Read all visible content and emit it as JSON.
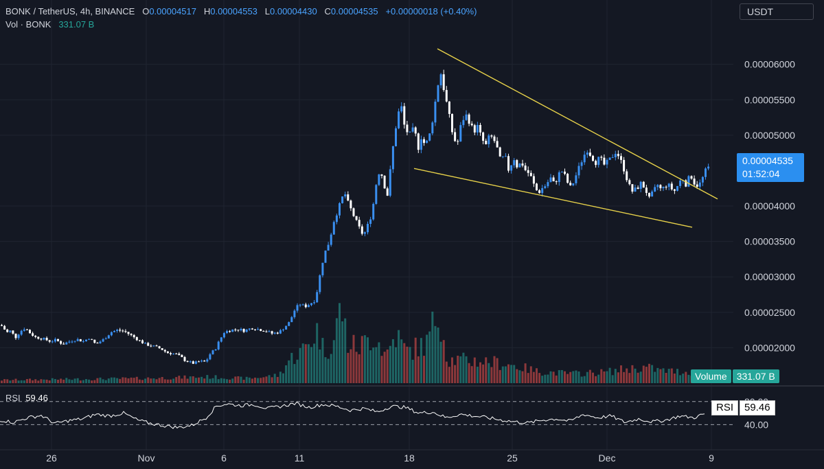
{
  "header": {
    "symbol": "BONK / TetherUS, 4h, BINANCE",
    "open_label": "O",
    "open": "0.00004517",
    "high_label": "H",
    "high": "0.00004553",
    "low_label": "L",
    "low": "0.00004430",
    "close_label": "C",
    "close": "0.00004535",
    "change": "+0.00000018 (+0.40%)",
    "vol_label": "Vol · BONK",
    "vol_value": "331.07 B"
  },
  "currency": "USDT",
  "price_tag": {
    "price": "0.00004535",
    "countdown": "01:52:04"
  },
  "volume_tag": {
    "label": "Volume",
    "value": "331.07 B"
  },
  "rsi": {
    "label": "RSI",
    "value": "59.46",
    "levels": [
      "80.00",
      "40.00"
    ]
  },
  "colors": {
    "background": "#141823",
    "up": "#3a8ff0",
    "down": "#ffffff",
    "volume_up": "#26a69a",
    "volume_down": "#ef5350",
    "trendline": "#e8d24a",
    "rsi_line": "#ffffff",
    "price_tag": "#2b8ff0"
  },
  "chart_data": {
    "type": "candlestick",
    "interval": "4h",
    "x_tick_labels": [
      "26",
      "Nov",
      "6",
      "11",
      "18",
      "25",
      "Dec",
      "9"
    ],
    "y_tick_labels": [
      "0.00006000",
      "0.00005500",
      "0.00005000",
      "0.00004000",
      "0.00003500",
      "0.00003000",
      "0.00002500",
      "0.00002000"
    ],
    "ylim": [
      1.5e-05,
      6.52e-05
    ],
    "close_path": [
      [
        0,
        2.32e-05
      ],
      [
        5,
        2.26e-05
      ],
      [
        10,
        2.21e-05
      ],
      [
        15,
        2.25e-05
      ],
      [
        20,
        2.13e-05
      ],
      [
        28,
        2.23e-05
      ],
      [
        35,
        2.28e-05
      ],
      [
        42,
        2.21e-05
      ],
      [
        50,
        2.15e-05
      ],
      [
        60,
        2.13e-05
      ],
      [
        72,
        2.09e-05
      ],
      [
        80,
        2.11e-05
      ],
      [
        90,
        2.05e-05
      ],
      [
        100,
        2.09e-05
      ],
      [
        110,
        2.12e-05
      ],
      [
        120,
        2.09e-05
      ],
      [
        128,
        2.14e-05
      ],
      [
        138,
        2.05e-05
      ],
      [
        150,
        2.12e-05
      ],
      [
        160,
        2.22e-05
      ],
      [
        170,
        2.25e-05
      ],
      [
        180,
        2.23e-05
      ],
      [
        192,
        2.16e-05
      ],
      [
        200,
        2.11e-05
      ],
      [
        210,
        2.05e-05
      ],
      [
        222,
        2.02e-05
      ],
      [
        232,
        1.99e-05
      ],
      [
        242,
        1.93e-05
      ],
      [
        255,
        1.91e-05
      ],
      [
        262,
        1.87e-05
      ],
      [
        268,
        1.82e-05
      ],
      [
        280,
        1.78e-05
      ],
      [
        290,
        1.81e-05
      ],
      [
        298,
        1.8e-05
      ],
      [
        305,
        1.92e-05
      ],
      [
        312,
        1.98e-05
      ],
      [
        318,
        2.1e-05
      ],
      [
        325,
        2.22e-05
      ],
      [
        335,
        2.25e-05
      ],
      [
        345,
        2.26e-05
      ],
      [
        355,
        2.24e-05
      ],
      [
        365,
        2.28e-05
      ],
      [
        375,
        2.26e-05
      ],
      [
        385,
        2.24e-05
      ],
      [
        395,
        2.2e-05
      ],
      [
        405,
        2.22e-05
      ],
      [
        413,
        2.29e-05
      ],
      [
        420,
        2.36e-05
      ],
      [
        428,
        2.54e-05
      ],
      [
        435,
        2.62e-05
      ],
      [
        442,
        2.58e-05
      ],
      [
        450,
        2.62e-05
      ],
      [
        458,
        2.68e-05
      ],
      [
        463,
        2.95e-05
      ],
      [
        470,
        3.3e-05
      ],
      [
        478,
        3.5e-05
      ],
      [
        485,
        3.8e-05
      ],
      [
        492,
        3.98e-05
      ],
      [
        500,
        4.2e-05
      ],
      [
        505,
        4.05e-05
      ],
      [
        512,
        3.9e-05
      ],
      [
        520,
        3.72e-05
      ],
      [
        528,
        3.58e-05
      ],
      [
        535,
        3.75e-05
      ],
      [
        540,
        3.9e-05
      ],
      [
        545,
        4.2e-05
      ],
      [
        548,
        4.45e-05
      ],
      [
        553,
        4.5e-05
      ],
      [
        558,
        4.3e-05
      ],
      [
        563,
        4.15e-05
      ],
      [
        568,
        4.6e-05
      ],
      [
        573,
        5e-05
      ],
      [
        578,
        5.3e-05
      ],
      [
        583,
        5.4e-05
      ],
      [
        588,
        5.1e-05
      ],
      [
        595,
        5e-05
      ],
      [
        602,
        5.1e-05
      ],
      [
        607,
        4.8e-05
      ],
      [
        612,
        4.98e-05
      ],
      [
        618,
        4.85e-05
      ],
      [
        624,
        5e-05
      ],
      [
        630,
        5.3e-05
      ],
      [
        635,
        5.65e-05
      ],
      [
        640,
        5.9e-05
      ],
      [
        646,
        5.6e-05
      ],
      [
        652,
        5.3e-05
      ],
      [
        658,
        5e-05
      ],
      [
        664,
        4.85e-05
      ],
      [
        670,
        5.15e-05
      ],
      [
        676,
        5.3e-05
      ],
      [
        682,
        5.2e-05
      ],
      [
        688,
        5.05e-05
      ],
      [
        694,
        5.12e-05
      ],
      [
        700,
        4.95e-05
      ],
      [
        706,
        4.85e-05
      ],
      [
        712,
        5e-05
      ],
      [
        720,
        4.9e-05
      ],
      [
        727,
        4.65e-05
      ],
      [
        734,
        4.7e-05
      ],
      [
        740,
        4.48e-05
      ],
      [
        746,
        4.7e-05
      ],
      [
        752,
        4.55e-05
      ],
      [
        758,
        4.62e-05
      ],
      [
        764,
        4.5e-05
      ],
      [
        770,
        4.45e-05
      ],
      [
        776,
        4.3e-05
      ],
      [
        782,
        4.18e-05
      ],
      [
        788,
        4.25e-05
      ],
      [
        794,
        4.3e-05
      ],
      [
        800,
        4.4e-05
      ],
      [
        806,
        4.3e-05
      ],
      [
        812,
        4.45e-05
      ],
      [
        818,
        4.5e-05
      ],
      [
        824,
        4.35e-05
      ],
      [
        830,
        4.25e-05
      ],
      [
        836,
        4.4e-05
      ],
      [
        842,
        4.55e-05
      ],
      [
        848,
        4.7e-05
      ],
      [
        854,
        4.8e-05
      ],
      [
        860,
        4.7e-05
      ],
      [
        866,
        4.62e-05
      ],
      [
        872,
        4.68e-05
      ],
      [
        878,
        4.58e-05
      ],
      [
        884,
        4.62e-05
      ],
      [
        890,
        4.7e-05
      ],
      [
        896,
        4.78e-05
      ],
      [
        902,
        4.65e-05
      ],
      [
        908,
        4.5e-05
      ],
      [
        914,
        4.3e-05
      ],
      [
        920,
        4.2e-05
      ],
      [
        926,
        4.25e-05
      ],
      [
        932,
        4.32e-05
      ],
      [
        938,
        4.25e-05
      ],
      [
        944,
        4.1e-05
      ],
      [
        950,
        4.2e-05
      ],
      [
        956,
        4.3e-05
      ],
      [
        962,
        4.22e-05
      ],
      [
        968,
        4.3e-05
      ],
      [
        974,
        4.28e-05
      ],
      [
        980,
        4.2e-05
      ],
      [
        986,
        4.3e-05
      ],
      [
        992,
        4.4e-05
      ],
      [
        998,
        4.3e-05
      ],
      [
        1004,
        4.45e-05
      ],
      [
        1010,
        4.32e-05
      ],
      [
        1016,
        4.28e-05
      ],
      [
        1022,
        4.4e-05
      ],
      [
        1028,
        4.54e-05
      ]
    ],
    "volume_path": [
      [
        0,
        0.04
      ],
      [
        100,
        0.05
      ],
      [
        200,
        0.06
      ],
      [
        300,
        0.08
      ],
      [
        360,
        0.06
      ],
      [
        405,
        0.1
      ],
      [
        420,
        0.3
      ],
      [
        440,
        0.42
      ],
      [
        462,
        0.68
      ],
      [
        470,
        0.4
      ],
      [
        485,
        0.55
      ],
      [
        495,
        1.0
      ],
      [
        505,
        0.5
      ],
      [
        520,
        0.45
      ],
      [
        545,
        0.62
      ],
      [
        560,
        0.35
      ],
      [
        575,
        0.62
      ],
      [
        590,
        0.4
      ],
      [
        605,
        0.45
      ],
      [
        620,
        0.5
      ],
      [
        638,
        0.95
      ],
      [
        650,
        0.3
      ],
      [
        700,
        0.28
      ],
      [
        740,
        0.24
      ],
      [
        780,
        0.15
      ],
      [
        830,
        0.12
      ],
      [
        880,
        0.14
      ],
      [
        910,
        0.18
      ],
      [
        940,
        0.2
      ],
      [
        960,
        0.16
      ],
      [
        1000,
        0.14
      ],
      [
        1030,
        0.12
      ]
    ],
    "rsi_path": [
      [
        0,
        48
      ],
      [
        20,
        44
      ],
      [
        40,
        52
      ],
      [
        60,
        56
      ],
      [
        80,
        42
      ],
      [
        100,
        47
      ],
      [
        120,
        50
      ],
      [
        140,
        58
      ],
      [
        160,
        55
      ],
      [
        180,
        60
      ],
      [
        200,
        48
      ],
      [
        220,
        42
      ],
      [
        240,
        38
      ],
      [
        260,
        35
      ],
      [
        280,
        39
      ],
      [
        300,
        52
      ],
      [
        315,
        72
      ],
      [
        330,
        76
      ],
      [
        350,
        73
      ],
      [
        370,
        75
      ],
      [
        390,
        68
      ],
      [
        410,
        72
      ],
      [
        430,
        77
      ],
      [
        450,
        70
      ],
      [
        470,
        75
      ],
      [
        490,
        72
      ],
      [
        510,
        65
      ],
      [
        530,
        68
      ],
      [
        550,
        62
      ],
      [
        570,
        72
      ],
      [
        590,
        70
      ],
      [
        610,
        60
      ],
      [
        630,
        62
      ],
      [
        650,
        52
      ],
      [
        670,
        58
      ],
      [
        690,
        55
      ],
      [
        710,
        52
      ],
      [
        730,
        48
      ],
      [
        750,
        45
      ],
      [
        770,
        43
      ],
      [
        790,
        48
      ],
      [
        810,
        50
      ],
      [
        830,
        46
      ],
      [
        850,
        58
      ],
      [
        870,
        52
      ],
      [
        890,
        55
      ],
      [
        910,
        44
      ],
      [
        930,
        50
      ],
      [
        950,
        45
      ],
      [
        970,
        48
      ],
      [
        990,
        55
      ],
      [
        1010,
        52
      ],
      [
        1028,
        59.46
      ]
    ],
    "trendlines": [
      {
        "from": [
          637,
          6.22e-05
        ],
        "to": [
          1045,
          4.1e-05
        ]
      },
      {
        "from": [
          603,
          4.53e-05
        ],
        "to": [
          1008,
          3.7e-05
        ]
      }
    ],
    "rsi_levels": [
      80,
      40
    ],
    "grid": true
  }
}
